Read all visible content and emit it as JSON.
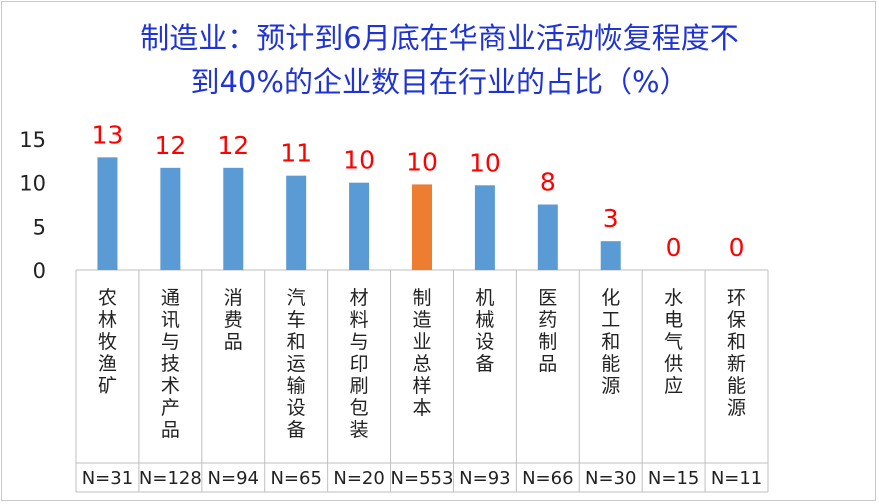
{
  "chart_data": {
    "type": "bar",
    "title_line1": "制造业：预计到6月底在华商业活动恢复程度不",
    "title_line2": "到40%的企业数目在行业的占比（%）",
    "categories": [
      "农林牧渔矿",
      "通讯与技术产品",
      "消费品",
      "汽车和运输设备",
      "材料与印刷包装",
      "制造业总样本",
      "机械设备",
      "医药制品",
      "化工和能源",
      "水电气供应",
      "环保和新能源"
    ],
    "values": [
      13,
      12,
      12,
      11,
      10,
      10,
      10,
      8,
      3,
      0,
      0
    ],
    "plotted_values": [
      12.9,
      11.7,
      11.7,
      10.8,
      10.0,
      9.8,
      9.7,
      7.5,
      3.3,
      0,
      0
    ],
    "sample_sizes": [
      "N=31",
      "N=128",
      "N=94",
      "N=65",
      "N=20",
      "N=553",
      "N=93",
      "N=66",
      "N=30",
      "N=15",
      "N=11"
    ],
    "highlight_index": 5,
    "colors": {
      "bar": "#5b9bd5",
      "highlight": "#ed7d31",
      "data_label": "#ff0000",
      "title": "#1f33d6"
    },
    "yticks": [
      "0",
      "5",
      "10",
      "15"
    ],
    "ylim": [
      0,
      15
    ],
    "grid": false,
    "legend": "none"
  }
}
